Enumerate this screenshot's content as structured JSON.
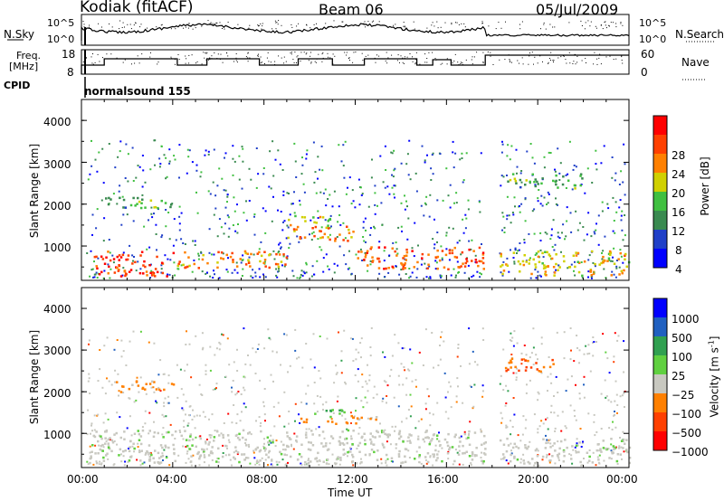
{
  "header": {
    "station": "Kodiak (fitACF)",
    "beam": "Beam 06",
    "date": "05/Jul/2009"
  },
  "top_panel": {
    "nsky_label": "N.Sky",
    "nsearch_label": "N.Search",
    "left_ticks": [
      "10^5",
      "10^0"
    ],
    "right_ticks": [
      "10^5",
      "10^0"
    ]
  },
  "freq_panel": {
    "freq_label_1": "Freq.",
    "freq_label_2": "[MHz]",
    "left_ticks": [
      "18",
      "8"
    ],
    "nave_label": "Nave",
    "right_ticks": [
      "60",
      "0"
    ]
  },
  "cpid_panel": {
    "label": "CPID",
    "value": "normalsound 155"
  },
  "power_panel": {
    "ylabel": "Slant Range [km]",
    "yticks": [
      "4000",
      "3000",
      "2000",
      "1000"
    ],
    "colorbar_label": "Power [dB]",
    "colorbar_ticks": [
      "28",
      "24",
      "20",
      "16",
      "12",
      "8",
      "4"
    ],
    "colors": [
      "#0000ff",
      "#2040c8",
      "#3a8a50",
      "#40c040",
      "#d0d000",
      "#ff8000",
      "#ff4000",
      "#ff0000"
    ]
  },
  "velocity_panel": {
    "ylabel": "Slant Range [km]",
    "yticks": [
      "4000",
      "3000",
      "2000",
      "1000"
    ],
    "colorbar_label": "Velocity [m s",
    "colorbar_label_sup": "-1",
    "colorbar_label_end": "]",
    "colorbar_ticks": [
      "1000",
      "500",
      "100",
      "25",
      "−25",
      "−100",
      "−500",
      "−1000"
    ],
    "colors": [
      "#0000ff",
      "#2060c0",
      "#30a050",
      "#60d040",
      "#c8c8c0",
      "#ff8000",
      "#ff4000",
      "#ff0000"
    ]
  },
  "xaxis": {
    "label": "Time UT",
    "ticks": [
      "00:00",
      "04:00",
      "08:00",
      "12:00",
      "16:00",
      "20:00",
      "00:00"
    ]
  },
  "chart_data": {
    "type": "heatmap",
    "title": "Kodiak (fitACF)",
    "x_range_hours": [
      0,
      24
    ],
    "y_range_km": [
      180,
      4500
    ],
    "power_range_db": [
      0,
      32
    ],
    "velocity_range_ms": [
      -1000,
      1000
    ],
    "power_regions": [
      {
        "t": [
          0.2,
          4.0
        ],
        "r": [
          300,
          900
        ],
        "db": 28
      },
      {
        "t": [
          4.0,
          9.0
        ],
        "r": [
          500,
          900
        ],
        "db": 24
      },
      {
        "t": [
          9.0,
          12.0
        ],
        "r": [
          1150,
          1500
        ],
        "db": 24
      },
      {
        "t": [
          9.0,
          11.0
        ],
        "r": [
          1500,
          1750
        ],
        "db": 18
      },
      {
        "t": [
          12.0,
          17.7
        ],
        "r": [
          450,
          1000
        ],
        "db": 26
      },
      {
        "t": [
          18.3,
          24.0
        ],
        "r": [
          300,
          900
        ],
        "db": 20
      },
      {
        "t": [
          18.5,
          22.0
        ],
        "r": [
          2400,
          2750
        ],
        "db": 12
      },
      {
        "t": [
          1.0,
          4.0
        ],
        "r": [
          1900,
          2200
        ],
        "db": 12
      }
    ],
    "velocity_regions": [
      {
        "t": [
          0.3,
          17.7
        ],
        "r": [
          300,
          1100
        ],
        "v": 0
      },
      {
        "t": [
          9.5,
          13.0
        ],
        "r": [
          1250,
          1450
        ],
        "v": -100
      },
      {
        "t": [
          9.5,
          11.5
        ],
        "r": [
          1400,
          1600
        ],
        "v": 100
      },
      {
        "t": [
          18.5,
          21.0
        ],
        "r": [
          2500,
          2850
        ],
        "v": -300
      },
      {
        "t": [
          1.5,
          4.0
        ],
        "r": [
          2000,
          2300
        ],
        "v": -100
      },
      {
        "t": [
          18.3,
          24.0
        ],
        "r": [
          300,
          900
        ],
        "v": 0
      }
    ]
  }
}
